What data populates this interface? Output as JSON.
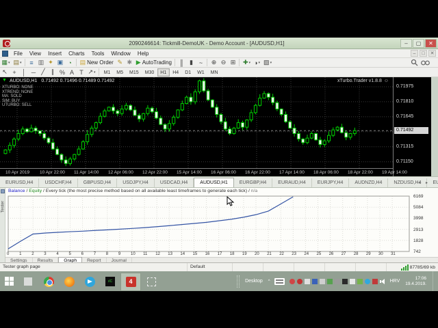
{
  "window": {
    "title": "2090246614: Tickmill-DemoUK - Demo Account - [AUDUSD,H1]",
    "controls": {
      "minimize": "–",
      "maximize": "▢",
      "close": "✕"
    }
  },
  "menu": {
    "items": [
      "File",
      "View",
      "Insert",
      "Charts",
      "Tools",
      "Window",
      "Help"
    ],
    "mdi_controls": {
      "minimize": "–",
      "restore": "□",
      "close": "✕"
    }
  },
  "toolbar": {
    "dropdown_glyph": "▾",
    "items": [
      {
        "type": "icon",
        "name": "new-chart",
        "glyph": "▦",
        "color": "#2f7d2f",
        "dropdown": true
      },
      {
        "type": "icon",
        "name": "profiles",
        "glyph": "▤",
        "color": "#8a7a3a",
        "dropdown": true
      },
      {
        "type": "sep"
      },
      {
        "type": "icon",
        "name": "market-watch",
        "glyph": "≡",
        "color": "#3a6a9a"
      },
      {
        "type": "icon",
        "name": "data-window",
        "glyph": "▥",
        "color": "#666666"
      },
      {
        "type": "icon",
        "name": "navigator",
        "glyph": "✦",
        "color": "#b5952a"
      },
      {
        "type": "icon",
        "name": "terminal",
        "glyph": "▣",
        "color": "#3a6a9a"
      },
      {
        "type": "icon",
        "name": "strategy-tester",
        "glyph": "◔",
        "color": "#2f7d2f"
      },
      {
        "type": "sep"
      },
      {
        "type": "button",
        "name": "new-order",
        "label": "New Order",
        "glyph": "▤",
        "color": "#caa53a"
      },
      {
        "type": "icon",
        "name": "metaeditor",
        "glyph": "✎",
        "color": "#b5952a"
      },
      {
        "type": "icon",
        "name": "options",
        "glyph": "✱",
        "color": "#888888"
      },
      {
        "type": "button",
        "name": "autotrading",
        "label": "AutoTrading",
        "glyph": "▶",
        "color": "#2f9e2f"
      },
      {
        "type": "sep"
      },
      {
        "type": "icon",
        "name": "bar-chart-mode",
        "glyph": "║",
        "color": "#444444"
      },
      {
        "type": "icon",
        "name": "candlestick-mode",
        "glyph": "▮",
        "color": "#444444"
      },
      {
        "type": "icon",
        "name": "line-chart-mode",
        "glyph": "~",
        "color": "#444444"
      },
      {
        "type": "sep"
      },
      {
        "type": "icon",
        "name": "zoom-in",
        "glyph": "⊕",
        "color": "#444444"
      },
      {
        "type": "icon",
        "name": "zoom-out",
        "glyph": "⊖",
        "color": "#444444"
      },
      {
        "type": "icon",
        "name": "tile-windows",
        "glyph": "⊞",
        "color": "#444444"
      },
      {
        "type": "sep"
      },
      {
        "type": "icon",
        "name": "indicators",
        "glyph": "✚",
        "color": "#2f7d2f",
        "dropdown": true
      },
      {
        "type": "icon",
        "name": "periods",
        "glyph": "◑",
        "color": "#444444",
        "dropdown": true
      },
      {
        "type": "icon",
        "name": "templates",
        "glyph": "▧",
        "color": "#444444",
        "dropdown": true
      }
    ]
  },
  "drawing_toolbar": {
    "items": [
      {
        "name": "cursor",
        "glyph": "↖"
      },
      {
        "name": "crosshair",
        "glyph": "+"
      },
      {
        "name": "vertical-line",
        "glyph": "│"
      },
      {
        "name": "horizontal-line",
        "glyph": "─"
      },
      {
        "name": "trendline",
        "glyph": "╱"
      },
      {
        "name": "equidistant-channel",
        "glyph": "∥"
      },
      {
        "name": "fibonacci-retracement",
        "glyph": "%"
      },
      {
        "name": "text",
        "glyph": "A"
      },
      {
        "name": "text-label",
        "glyph": "T"
      },
      {
        "name": "arrow-objects",
        "glyph": "↗",
        "dropdown": true
      }
    ],
    "timeframes": [
      "M1",
      "M5",
      "M15",
      "M30",
      "H1",
      "H4",
      "D1",
      "W1",
      "MN"
    ],
    "active_timeframe": "H1"
  },
  "chart": {
    "one_click_glyph": "▼",
    "header": {
      "symbol": "AUDUSD,H1",
      "ohlc": "0.71492 0.71496 0.71489 0.71492"
    },
    "ea_badge": {
      "name": "xTurbo.Trader v1.8.8",
      "icon_glyph": "☺"
    },
    "ea_lines": [
      "XTURBO: NONE",
      "XTREND: NONE",
      "MA: SOLD",
      "SIM: BUY",
      "UTURBO: SELL"
    ],
    "price_axis": {
      "labels": [
        "0.71975",
        "0.71810",
        "0.71645",
        "0.71480",
        "0.71315",
        "0.71150"
      ],
      "current": "0.71492"
    },
    "time_labels": [
      "10 Apr 2019",
      "10 Apr 22:00",
      "11 Apr 14:00",
      "12 Apr 06:00",
      "12 Apr 22:00",
      "15 Apr 14:00",
      "16 Apr 06:00",
      "16 Apr 22:00",
      "17 Apr 14:00",
      "18 Apr 06:00",
      "18 Apr 22:00",
      "19 Apr 14:00"
    ],
    "chart_data": {
      "type": "candlestick",
      "symbol": "AUDUSD",
      "timeframe": "H1",
      "ylim": [
        0.7108,
        0.7208
      ],
      "closes": [
        0.7128,
        0.7133,
        0.714,
        0.7146,
        0.7151,
        0.7148,
        0.7152,
        0.7149,
        0.7146,
        0.7141,
        0.7136,
        0.7129,
        0.7123,
        0.7117,
        0.7113,
        0.7118,
        0.7123,
        0.7129,
        0.7137,
        0.7145,
        0.7152,
        0.7158,
        0.7165,
        0.7171,
        0.7175,
        0.7171,
        0.7168,
        0.7173,
        0.7177,
        0.7172,
        0.7166,
        0.7162,
        0.7168,
        0.7174,
        0.717,
        0.7163,
        0.7156,
        0.7151,
        0.7157,
        0.7164,
        0.7172,
        0.7179,
        0.7186,
        0.7181,
        0.7192,
        0.7204,
        0.7193,
        0.7183,
        0.7175,
        0.7167,
        0.7159,
        0.7151,
        0.7146,
        0.7152,
        0.7158,
        0.7153,
        0.7161,
        0.7169,
        0.7177,
        0.7185,
        0.719,
        0.7186,
        0.718,
        0.7173,
        0.7167,
        0.7159,
        0.7152,
        0.7146,
        0.714,
        0.7136,
        0.7141,
        0.7146,
        0.7139,
        0.7134,
        0.7138,
        0.7144,
        0.715,
        0.7153,
        0.7147,
        0.7142,
        0.7146,
        0.71492
      ]
    }
  },
  "chart_tabs": {
    "items": [
      "EURUSD,H4",
      "USDCHF,H4",
      "GBPUSD,H4",
      "USDJPY,H4",
      "USDCAD,H4",
      "AUDUSD,H1",
      "EURGBP,H4",
      "EURAUD,H4",
      "EURJPY,H4",
      "AUDNZD,H4",
      "NZDUSD,H4",
      "EURNZD,H4",
      "AUDNZD,H4"
    ],
    "active_index": 5,
    "scroll_glyphs": "◂  ▸"
  },
  "tester": {
    "side_label": "Tester",
    "header": {
      "balance_label": "Balance",
      "equity_label": "Equity",
      "separator": " / ",
      "description": "Every tick (the most precise method based on all available least timeframes to generate each tick)",
      "na": "n/a"
    },
    "tabs": [
      "Settings",
      "Results",
      "Graph",
      "Report",
      "Journal"
    ],
    "active_tab": "Graph",
    "chart_data": {
      "type": "line",
      "series": [
        {
          "name": "Balance",
          "x": [
            0,
            1,
            2,
            3,
            4,
            5,
            6,
            7,
            8,
            9,
            10,
            11,
            12,
            13,
            14,
            15,
            16,
            17,
            18,
            19,
            20,
            21,
            22,
            23
          ],
          "values": [
            1000,
            1750,
            2450,
            2550,
            2620,
            2680,
            2730,
            2800,
            2860,
            2930,
            3000,
            3080,
            3170,
            3270,
            3380,
            3490,
            3600,
            3750,
            3900,
            4100,
            4350,
            4700,
            5400,
            6100
          ]
        }
      ],
      "x_ticks": [
        0,
        1,
        2,
        3,
        4,
        5,
        6,
        7,
        8,
        9,
        10,
        11,
        12,
        13,
        14,
        15,
        16,
        17,
        18,
        19,
        20,
        21,
        22,
        23,
        24,
        25,
        26,
        27,
        28,
        29,
        30,
        31
      ],
      "y_ticks": [
        6169,
        5084,
        3998,
        2913,
        1828,
        742
      ],
      "xlim": [
        0,
        31
      ],
      "ylim": [
        742,
        6169
      ]
    }
  },
  "status_bar": {
    "cells": [
      "Tester graph page",
      "Default",
      "",
      "",
      "",
      "",
      ""
    ],
    "connection": "87785/69 kb"
  },
  "taskbar": {
    "desktop_label": "Desktop",
    "hidden_icons_glyph": "^",
    "lang": "HRV",
    "time": "17:06",
    "date": "19.4.2019.",
    "apps": [
      {
        "name": "task-view"
      },
      {
        "name": "chrome"
      },
      {
        "name": "firefox"
      },
      {
        "name": "telegram"
      },
      {
        "name": "ic-markets",
        "label": "ılC"
      },
      {
        "name": "metatrader4",
        "label": "4",
        "active": true
      },
      {
        "name": "snipping-tool"
      }
    ],
    "tray_icons": [
      {
        "name": "teamviewer",
        "color": "#d04545",
        "round": true
      },
      {
        "name": "antivirus",
        "color": "#c23232",
        "round": true
      },
      {
        "name": "sync-app",
        "color": "#e0e0e0"
      },
      {
        "name": "defender",
        "color": "#3a62b8"
      },
      {
        "name": "network",
        "color": "#cfcfcf"
      },
      {
        "name": "green-app",
        "color": "#57a14f"
      },
      {
        "name": "window-app",
        "color": "#9a9a9a"
      },
      {
        "name": "bird-app",
        "color": "#2b2b2b"
      },
      {
        "name": "flag-app",
        "color": "#e8e8e8"
      },
      {
        "name": "leaf-app",
        "color": "#76b24a"
      },
      {
        "name": "telegram-tray",
        "color": "#31a8dd",
        "round": true
      },
      {
        "name": "r-app",
        "color": "#c03a3a"
      }
    ]
  },
  "colors": {
    "candle": "#00d200",
    "bull_fill": "#000000",
    "bear_fill": "#f0f0f0",
    "grid": "#3c3c3c",
    "current_price_line": "#9a9a9a",
    "balance_line": "#3353a4",
    "tester_grid": "#dcdcd6"
  }
}
